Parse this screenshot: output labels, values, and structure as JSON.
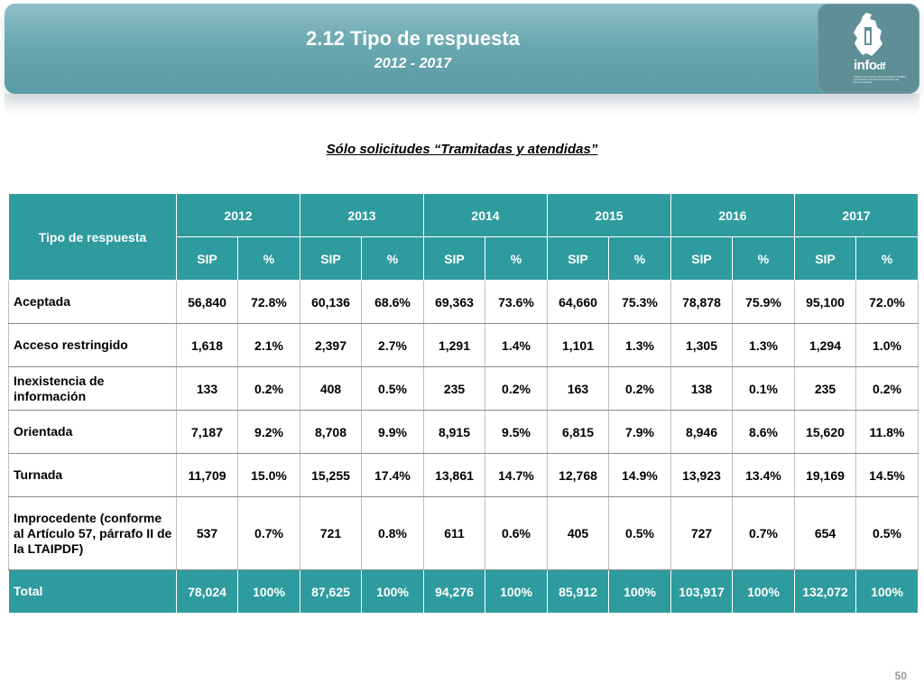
{
  "header": {
    "title": "2.12 Tipo de respuesta",
    "subtitle": "2012 - 2017",
    "logo_text": "info",
    "logo_suffix": "df",
    "logo_caption": "Instituto de Acceso a la Información Pública y Protección de Datos Personales del Distrito Federal"
  },
  "caption": "Sólo solicitudes “Tramitadas y atendidas”",
  "table": {
    "corner_header": "Tipo de respuesta",
    "years": [
      "2012",
      "2013",
      "2014",
      "2015",
      "2016",
      "2017"
    ],
    "sub_headers": [
      "SIP",
      "%",
      "SIP",
      "%",
      "SIP",
      "%",
      "SIP",
      "%",
      "SIP",
      "%",
      "SIP",
      "%"
    ],
    "rows": [
      {
        "label": "Aceptada",
        "values": [
          "56,840",
          "72.8%",
          "60,136",
          "68.6%",
          "69,363",
          "73.6%",
          "64,660",
          "75.3%",
          "78,878",
          "75.9%",
          "95,100",
          "72.0%"
        ]
      },
      {
        "label": "Acceso restringido",
        "values": [
          "1,618",
          "2.1%",
          "2,397",
          "2.7%",
          "1,291",
          "1.4%",
          "1,101",
          "1.3%",
          "1,305",
          "1.3%",
          "1,294",
          "1.0%"
        ]
      },
      {
        "label": "Inexistencia de información",
        "values": [
          "133",
          "0.2%",
          "408",
          "0.5%",
          "235",
          "0.2%",
          "163",
          "0.2%",
          "138",
          "0.1%",
          "235",
          "0.2%"
        ]
      },
      {
        "label": "Orientada",
        "values": [
          "7,187",
          "9.2%",
          "8,708",
          "9.9%",
          "8,915",
          "9.5%",
          "6,815",
          "7.9%",
          "8,946",
          "8.6%",
          "15,620",
          "11.8%"
        ]
      },
      {
        "label": "Turnada",
        "values": [
          "11,709",
          "15.0%",
          "15,255",
          "17.4%",
          "13,861",
          "14.7%",
          "12,768",
          "14.9%",
          "13,923",
          "13.4%",
          "19,169",
          "14.5%"
        ]
      },
      {
        "label": "Improcedente (conforme al Artículo 57, párrafo II de la LTAIPDF)",
        "values": [
          "537",
          "0.7%",
          "721",
          "0.8%",
          "611",
          "0.6%",
          "405",
          "0.5%",
          "727",
          "0.7%",
          "654",
          "0.5%"
        ]
      }
    ],
    "total": {
      "label": "Total",
      "values": [
        "78,024",
        "100%",
        "87,625",
        "100%",
        "94,276",
        "100%",
        "85,912",
        "100%",
        "103,917",
        "100%",
        "132,072",
        "100%"
      ]
    }
  },
  "page_number": "50",
  "colors": {
    "header_teal": "#2e9b9e",
    "banner": "#6aa8b0",
    "logo_box": "#5f8f96"
  }
}
